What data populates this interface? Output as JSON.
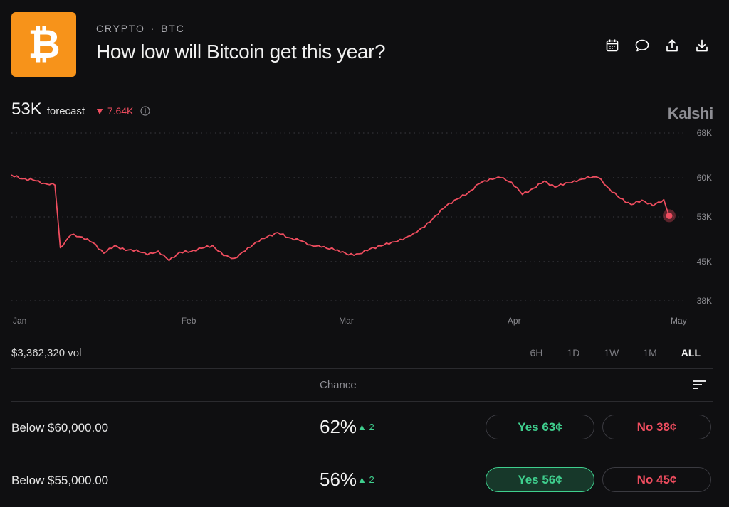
{
  "header": {
    "category": "CRYPTO",
    "ticker": "BTC",
    "separator": "·",
    "title": "How low will Bitcoin get this year?",
    "logo_symbol": "₿",
    "logo_color": "#f7931a",
    "actions": [
      "calendar-icon",
      "comment-icon",
      "share-icon",
      "download-icon"
    ]
  },
  "forecast": {
    "value": "53K",
    "label": "forecast",
    "change_arrow": "▼",
    "change": "7.64K",
    "down_color": "#ef4d5f"
  },
  "brand": "Kalshi",
  "chart_data": {
    "type": "line",
    "series": [
      {
        "color": "#ef4d5f",
        "x": [
          "Jan 1",
          "Jan 3",
          "Jan 5",
          "Jan 7",
          "Jan 9",
          "Jan 10",
          "Jan 12",
          "Jan 14",
          "Jan 16",
          "Jan 18",
          "Jan 20",
          "Jan 22",
          "Jan 24",
          "Jan 26",
          "Jan 28",
          "Jan 30",
          "Feb 1",
          "Feb 3",
          "Feb 5",
          "Feb 7",
          "Feb 9",
          "Feb 11",
          "Feb 13",
          "Feb 15",
          "Feb 17",
          "Feb 19",
          "Feb 21",
          "Feb 23",
          "Feb 25",
          "Feb 27",
          "Mar 1",
          "Mar 3",
          "Mar 5",
          "Mar 7",
          "Mar 9",
          "Mar 11",
          "Mar 13",
          "Mar 15",
          "Mar 17",
          "Mar 19",
          "Mar 21",
          "Mar 23",
          "Mar 25",
          "Mar 27",
          "Mar 29",
          "Mar 31",
          "Apr 2",
          "Apr 4",
          "Apr 6",
          "Apr 8",
          "Apr 10",
          "Apr 12",
          "Apr 14",
          "Apr 16",
          "Apr 18",
          "Apr 20",
          "Apr 22",
          "Apr 24",
          "Apr 26",
          "Apr 28",
          "Apr 30",
          "May 1"
        ],
        "values": [
          60.5,
          59.8,
          59.6,
          59.0,
          58.7,
          47.5,
          49.8,
          49.4,
          48.4,
          46.5,
          47.9,
          47.0,
          47.1,
          46.2,
          46.9,
          45.2,
          46.7,
          46.8,
          47.4,
          47.9,
          46.1,
          45.6,
          46.9,
          48.5,
          49.4,
          50.2,
          49.3,
          48.8,
          48.0,
          47.6,
          47.1,
          46.2,
          46.4,
          47.3,
          47.8,
          48.5,
          48.9,
          50.1,
          51.2,
          53.2,
          55.0,
          56.2,
          57.3,
          58.9,
          59.8,
          60.0,
          59.2,
          57.0,
          58.1,
          59.4,
          58.3,
          59.1,
          59.3,
          60.2,
          60.0,
          58.0,
          56.3,
          55.2,
          56.0,
          55.0,
          56.1,
          53.2
        ]
      }
    ],
    "x_tick_labels": [
      "Jan",
      "Feb",
      "Mar",
      "Apr",
      "May"
    ],
    "y_tick_labels": [
      "68K",
      "60K",
      "53K",
      "45K",
      "38K"
    ],
    "ylim": [
      38,
      68
    ],
    "grid": "horizontal-dotted",
    "endpoint_marker": true
  },
  "volume": "$3,362,320 vol",
  "ranges": [
    {
      "label": "6H",
      "active": false
    },
    {
      "label": "1D",
      "active": false
    },
    {
      "label": "1W",
      "active": false
    },
    {
      "label": "1M",
      "active": false
    },
    {
      "label": "ALL",
      "active": true
    }
  ],
  "table": {
    "chance_header": "Chance",
    "rows": [
      {
        "label": "Below $60,000.00",
        "chance": "62%",
        "delta": "▲ 2",
        "yes": "Yes 63¢",
        "no": "No 38¢",
        "yes_selected": false
      },
      {
        "label": "Below $55,000.00",
        "chance": "56%",
        "delta": "▲ 2",
        "yes": "Yes 56¢",
        "no": "No 45¢",
        "yes_selected": true
      }
    ]
  }
}
